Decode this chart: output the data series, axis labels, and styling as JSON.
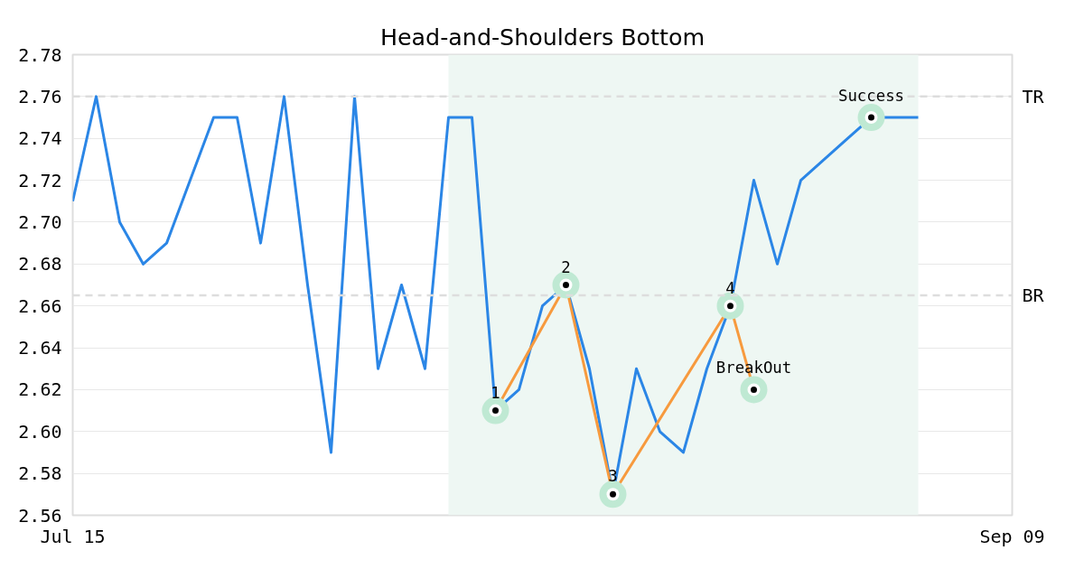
{
  "chart_data": {
    "type": "line",
    "title": "Head-and-Shoulders Bottom",
    "categories": [
      "Jul 15",
      null,
      null,
      null,
      null,
      null,
      null,
      null,
      null,
      null,
      null,
      null,
      null,
      null,
      null,
      null,
      null,
      null,
      null,
      null,
      null,
      null,
      null,
      null,
      null,
      null,
      null,
      null,
      null,
      null,
      null,
      null,
      null,
      null,
      null,
      null,
      null,
      null,
      null,
      null,
      "Sep 09"
    ],
    "ylim": [
      2.56,
      2.78
    ],
    "yticks": [
      2.56,
      2.58,
      {
        "value": 2.6,
        "label": "2.60"
      },
      2.62,
      2.64,
      2.66,
      2.68,
      {
        "value": 2.7,
        "label": "2.70"
      },
      2.72,
      2.74,
      2.76,
      2.78
    ],
    "grid": "y",
    "series": [
      {
        "color": "#2b86e6",
        "values": [
          2.71,
          2.76,
          2.7,
          2.68,
          2.69,
          2.72,
          2.75,
          2.75,
          2.69,
          2.76,
          2.67,
          2.59,
          2.76,
          2.63,
          2.67,
          2.63,
          2.75,
          2.75,
          2.61,
          2.62,
          2.66,
          2.67,
          2.63,
          2.57,
          2.63,
          2.6,
          2.59,
          2.63,
          2.66,
          2.72,
          2.68,
          2.72,
          2.73,
          2.74,
          2.75,
          2.75,
          2.75,
          null,
          null,
          null,
          null
        ]
      },
      {
        "color": "#f79a3e",
        "marker": "circle",
        "values": [
          null,
          null,
          null,
          null,
          null,
          null,
          null,
          null,
          null,
          null,
          null,
          null,
          null,
          null,
          null,
          null,
          null,
          null,
          2.61,
          null,
          null,
          2.67,
          null,
          2.57,
          null,
          null,
          null,
          null,
          2.66,
          2.62,
          null,
          null,
          null,
          null,
          null,
          null,
          null,
          null,
          null,
          null,
          null
        ]
      },
      {
        "type": "scatter",
        "color": "#bfe9d3",
        "values": [
          null,
          null,
          null,
          null,
          null,
          null,
          null,
          null,
          null,
          null,
          null,
          null,
          null,
          null,
          null,
          null,
          null,
          null,
          null,
          null,
          null,
          null,
          null,
          null,
          null,
          null,
          null,
          null,
          null,
          null,
          null,
          null,
          null,
          null,
          2.75,
          null,
          null,
          null,
          null,
          null,
          null
        ]
      }
    ],
    "annotations": [
      "1",
      "2",
      "3",
      "4",
      "BreakOut",
      "Success"
    ],
    "ref_lines": [
      {
        "axis": "y",
        "value": 2.76,
        "label": "TR",
        "color": "#dddddd",
        "line_style": "dashed"
      },
      {
        "axis": "y",
        "value": 2.665,
        "label": "BR",
        "color": "#dddddd",
        "line_style": "dashed"
      }
    ]
  }
}
